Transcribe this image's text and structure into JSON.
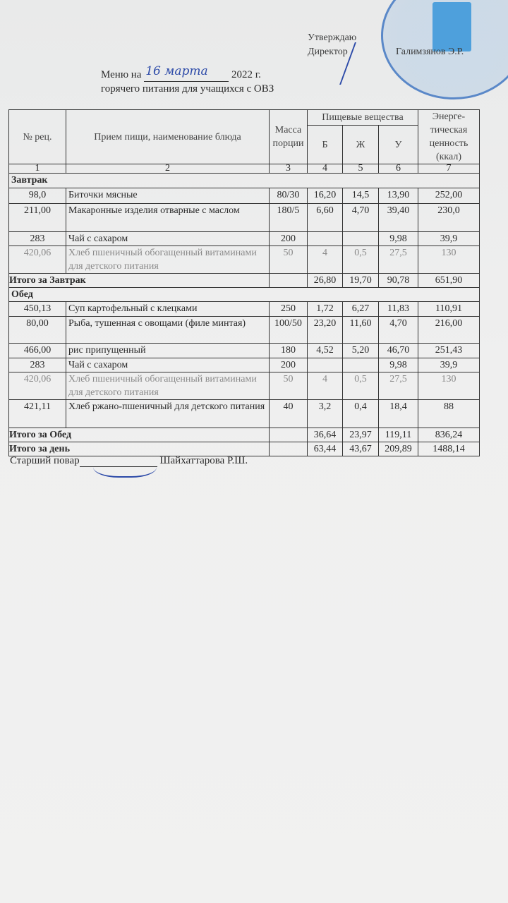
{
  "approval": {
    "label1": "Утверждаю",
    "label2": "Директор",
    "director_name": "Галимзянов Э.Р."
  },
  "title": {
    "prefix": "Меню на",
    "handwritten_date": "16 марта",
    "year": "2022 г.",
    "subtitle": "горячего питания для учащихся с ОВЗ"
  },
  "table": {
    "headers": {
      "rec_no": "№ рец.",
      "dish": "Прием пищи, наименование блюда",
      "mass": "Масса порции",
      "nutrients": "Пищевые вещества",
      "b": "Б",
      "zh": "Ж",
      "u": "У",
      "energy": "Энерге-тическая ценность (ккал)"
    },
    "col_numbers": [
      "1",
      "2",
      "3",
      "4",
      "5",
      "6",
      "7"
    ],
    "breakfast": {
      "title": "Завтрак",
      "rows": [
        [
          "98,0",
          "Биточки мясные",
          "80/30",
          "16,20",
          "14,5",
          "13,90",
          "252,00"
        ],
        [
          "211,00",
          "Макаронные изделия отварные с маслом",
          "180/5",
          "6,60",
          "4,70",
          "39,40",
          "230,0"
        ],
        [
          "283",
          "Чай с сахаром",
          "200",
          "",
          "",
          "9,98",
          "39,9"
        ],
        [
          "420,06",
          "Хлеб пшеничный обогащенный витаминами для детского питания",
          "50",
          "4",
          "0,5",
          "27,5",
          "130"
        ]
      ],
      "total": [
        "Итого за Завтрак",
        "",
        "26,80",
        "19,70",
        "90,78",
        "651,90"
      ]
    },
    "lunch": {
      "title": "Обед",
      "rows": [
        [
          "450,13",
          "Суп картофельный с клецками",
          "250",
          "1,72",
          "6,27",
          "11,83",
          "110,91"
        ],
        [
          "80,00",
          "Рыба, тушенная с овощами (филе минтая)",
          "100/50",
          "23,20",
          "11,60",
          "4,70",
          "216,00"
        ],
        [
          "466,00",
          "рис припущенный",
          "180",
          "4,52",
          "5,20",
          "46,70",
          "251,43"
        ],
        [
          "283",
          "Чай с сахаром",
          "200",
          "",
          "",
          "9,98",
          "39,9"
        ],
        [
          "420,06",
          "Хлеб пшеничный обогащенный витаминами для детского питания",
          "50",
          "4",
          "0,5",
          "27,5",
          "130"
        ],
        [
          "421,11",
          "Хлеб ржано-пшеничный для детского питания",
          "40",
          "3,2",
          "0,4",
          "18,4",
          "88"
        ]
      ],
      "total": [
        "Итого за Обед",
        "",
        "36,64",
        "23,97",
        "119,11",
        "836,24"
      ]
    },
    "day_total": [
      "Итого за день",
      "",
      "63,44",
      "43,67",
      "209,89",
      "1488,14"
    ]
  },
  "footer": {
    "label": "Старший повар",
    "name": "Шайхаттарова Р.Ш."
  }
}
